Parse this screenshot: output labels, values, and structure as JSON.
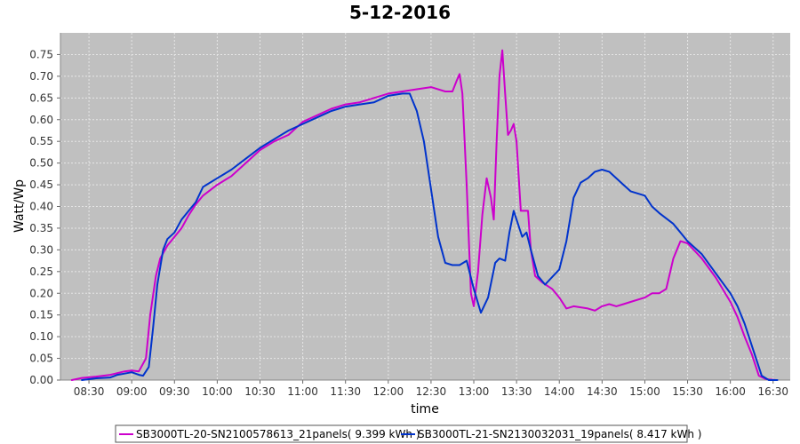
{
  "chart_data": {
    "type": "line",
    "title": "5-12-2016",
    "xlabel": "time",
    "ylabel": "Watt/Wp",
    "x_ticks": [
      "08:30",
      "09:00",
      "09:30",
      "10:00",
      "10:30",
      "11:00",
      "11:30",
      "12:00",
      "12:30",
      "13:00",
      "13:30",
      "14:00",
      "14:30",
      "15:00",
      "15:30",
      "16:00",
      "16:30"
    ],
    "x_range": [
      "08:10",
      "16:42"
    ],
    "ylim": [
      0,
      0.8
    ],
    "y_ticks": [
      0.0,
      0.05,
      0.1,
      0.15,
      0.2,
      0.25,
      0.3,
      0.35,
      0.4,
      0.45,
      0.5,
      0.55,
      0.6,
      0.65,
      0.7,
      0.75
    ],
    "y_tick_labels": [
      "0.00",
      "0.05",
      "0.10",
      "0.15",
      "0.20",
      "0.25",
      "0.30",
      "0.35",
      "0.40",
      "0.45",
      "0.50",
      "0.55",
      "0.60",
      "0.65",
      "0.70",
      "0.75"
    ],
    "grid": true,
    "legend": "bottom",
    "colors": {
      "plot_bg": "#c0c0c0",
      "grid": "#e6e6e6"
    },
    "series": [
      {
        "name": "SB3000TL-20-SN2100578613_21panels( 9.399 kWh )",
        "color": "#cc00cc",
        "points": [
          [
            "08:18",
            0.0
          ],
          [
            "08:25",
            0.005
          ],
          [
            "08:35",
            0.008
          ],
          [
            "08:45",
            0.012
          ],
          [
            "08:55",
            0.02
          ],
          [
            "09:00",
            0.022
          ],
          [
            "09:05",
            0.02
          ],
          [
            "09:10",
            0.05
          ],
          [
            "09:13",
            0.15
          ],
          [
            "09:17",
            0.24
          ],
          [
            "09:20",
            0.28
          ],
          [
            "09:25",
            0.31
          ],
          [
            "09:30",
            0.33
          ],
          [
            "09:35",
            0.35
          ],
          [
            "09:40",
            0.38
          ],
          [
            "09:45",
            0.405
          ],
          [
            "09:50",
            0.425
          ],
          [
            "10:00",
            0.45
          ],
          [
            "10:10",
            0.47
          ],
          [
            "10:20",
            0.5
          ],
          [
            "10:30",
            0.53
          ],
          [
            "10:40",
            0.55
          ],
          [
            "10:50",
            0.565
          ],
          [
            "11:00",
            0.595
          ],
          [
            "11:10",
            0.61
          ],
          [
            "11:20",
            0.625
          ],
          [
            "11:30",
            0.635
          ],
          [
            "11:40",
            0.64
          ],
          [
            "11:50",
            0.65
          ],
          [
            "12:00",
            0.66
          ],
          [
            "12:10",
            0.665
          ],
          [
            "12:20",
            0.67
          ],
          [
            "12:30",
            0.675
          ],
          [
            "12:40",
            0.665
          ],
          [
            "12:45",
            0.665
          ],
          [
            "12:48",
            0.69
          ],
          [
            "12:50",
            0.705
          ],
          [
            "12:52",
            0.66
          ],
          [
            "12:55",
            0.45
          ],
          [
            "12:58",
            0.2
          ],
          [
            "13:00",
            0.17
          ],
          [
            "13:03",
            0.25
          ],
          [
            "13:06",
            0.38
          ],
          [
            "13:09",
            0.465
          ],
          [
            "13:12",
            0.42
          ],
          [
            "13:14",
            0.37
          ],
          [
            "13:16",
            0.55
          ],
          [
            "13:18",
            0.7
          ],
          [
            "13:20",
            0.76
          ],
          [
            "13:22",
            0.66
          ],
          [
            "13:24",
            0.565
          ],
          [
            "13:26",
            0.575
          ],
          [
            "13:28",
            0.59
          ],
          [
            "13:30",
            0.55
          ],
          [
            "13:33",
            0.39
          ],
          [
            "13:35",
            0.39
          ],
          [
            "13:38",
            0.39
          ],
          [
            "13:40",
            0.3
          ],
          [
            "13:43",
            0.24
          ],
          [
            "13:48",
            0.225
          ],
          [
            "13:55",
            0.21
          ],
          [
            "14:00",
            0.19
          ],
          [
            "14:05",
            0.165
          ],
          [
            "14:10",
            0.17
          ],
          [
            "14:20",
            0.165
          ],
          [
            "14:25",
            0.16
          ],
          [
            "14:30",
            0.17
          ],
          [
            "14:35",
            0.175
          ],
          [
            "14:40",
            0.17
          ],
          [
            "14:45",
            0.175
          ],
          [
            "14:50",
            0.18
          ],
          [
            "15:00",
            0.19
          ],
          [
            "15:05",
            0.2
          ],
          [
            "15:10",
            0.2
          ],
          [
            "15:15",
            0.21
          ],
          [
            "15:20",
            0.28
          ],
          [
            "15:25",
            0.32
          ],
          [
            "15:30",
            0.315
          ],
          [
            "15:40",
            0.28
          ],
          [
            "15:50",
            0.235
          ],
          [
            "16:00",
            0.18
          ],
          [
            "16:05",
            0.145
          ],
          [
            "16:10",
            0.1
          ],
          [
            "16:15",
            0.06
          ],
          [
            "16:20",
            0.01
          ],
          [
            "16:25",
            0.002
          ],
          [
            "16:32",
            0.0
          ]
        ]
      },
      {
        "name": "SB3000TL-21-SN2130032031_19panels( 8.417 kWh )",
        "color": "#0033cc",
        "points": [
          [
            "08:25",
            0.0
          ],
          [
            "08:35",
            0.004
          ],
          [
            "08:45",
            0.006
          ],
          [
            "08:50",
            0.012
          ],
          [
            "08:55",
            0.015
          ],
          [
            "09:00",
            0.018
          ],
          [
            "09:05",
            0.012
          ],
          [
            "09:08",
            0.01
          ],
          [
            "09:12",
            0.03
          ],
          [
            "09:15",
            0.12
          ],
          [
            "09:18",
            0.22
          ],
          [
            "09:22",
            0.3
          ],
          [
            "09:25",
            0.325
          ],
          [
            "09:30",
            0.34
          ],
          [
            "09:35",
            0.37
          ],
          [
            "09:40",
            0.39
          ],
          [
            "09:45",
            0.41
          ],
          [
            "09:50",
            0.445
          ],
          [
            "10:00",
            0.465
          ],
          [
            "10:10",
            0.485
          ],
          [
            "10:20",
            0.51
          ],
          [
            "10:30",
            0.535
          ],
          [
            "10:40",
            0.555
          ],
          [
            "10:50",
            0.575
          ],
          [
            "11:00",
            0.59
          ],
          [
            "11:10",
            0.605
          ],
          [
            "11:20",
            0.62
          ],
          [
            "11:30",
            0.63
          ],
          [
            "11:40",
            0.635
          ],
          [
            "11:50",
            0.64
          ],
          [
            "12:00",
            0.655
          ],
          [
            "12:10",
            0.66
          ],
          [
            "12:15",
            0.66
          ],
          [
            "12:20",
            0.62
          ],
          [
            "12:25",
            0.55
          ],
          [
            "12:30",
            0.44
          ],
          [
            "12:35",
            0.33
          ],
          [
            "12:40",
            0.27
          ],
          [
            "12:45",
            0.265
          ],
          [
            "12:50",
            0.265
          ],
          [
            "12:55",
            0.275
          ],
          [
            "13:00",
            0.21
          ],
          [
            "13:05",
            0.155
          ],
          [
            "13:10",
            0.19
          ],
          [
            "13:15",
            0.27
          ],
          [
            "13:18",
            0.28
          ],
          [
            "13:22",
            0.275
          ],
          [
            "13:25",
            0.34
          ],
          [
            "13:28",
            0.39
          ],
          [
            "13:31",
            0.36
          ],
          [
            "13:34",
            0.33
          ],
          [
            "13:37",
            0.34
          ],
          [
            "13:40",
            0.3
          ],
          [
            "13:45",
            0.24
          ],
          [
            "13:50",
            0.22
          ],
          [
            "14:00",
            0.255
          ],
          [
            "14:05",
            0.32
          ],
          [
            "14:10",
            0.42
          ],
          [
            "14:15",
            0.455
          ],
          [
            "14:20",
            0.465
          ],
          [
            "14:25",
            0.48
          ],
          [
            "14:30",
            0.485
          ],
          [
            "14:35",
            0.48
          ],
          [
            "14:40",
            0.465
          ],
          [
            "14:45",
            0.45
          ],
          [
            "14:50",
            0.435
          ],
          [
            "15:00",
            0.425
          ],
          [
            "15:05",
            0.4
          ],
          [
            "15:10",
            0.385
          ],
          [
            "15:20",
            0.36
          ],
          [
            "15:30",
            0.32
          ],
          [
            "15:40",
            0.29
          ],
          [
            "15:50",
            0.245
          ],
          [
            "16:00",
            0.2
          ],
          [
            "16:05",
            0.17
          ],
          [
            "16:10",
            0.13
          ],
          [
            "16:15",
            0.08
          ],
          [
            "16:20",
            0.03
          ],
          [
            "16:22",
            0.01
          ],
          [
            "16:27",
            0.0
          ],
          [
            "16:33",
            0.0
          ]
        ]
      }
    ]
  }
}
